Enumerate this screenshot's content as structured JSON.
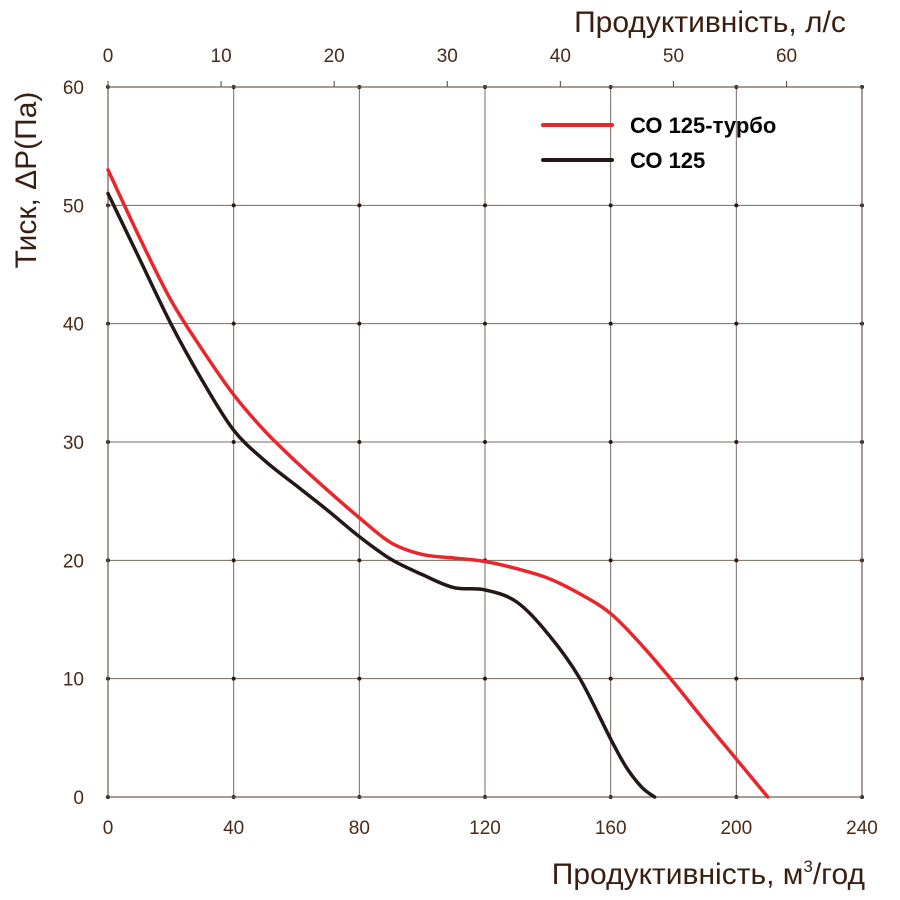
{
  "chart_data": {
    "type": "line",
    "title": "",
    "xlabel": "Продуктивність, м³/год",
    "xlabel_main": "Продуктивність, м",
    "xlabel_sup": "3",
    "xlabel_tail": "/год",
    "x2label": "Продуктивність, л/с",
    "ylabel": "Тиск, ΔP(Па)",
    "xlim": [
      0,
      240
    ],
    "x2lim": [
      0,
      66.67
    ],
    "ylim": [
      0,
      60
    ],
    "x_ticks": [
      "0",
      "40",
      "80",
      "120",
      "160",
      "200",
      "240"
    ],
    "x_tick_values": [
      0,
      40,
      80,
      120,
      160,
      200,
      240
    ],
    "x2_ticks": [
      "0",
      "10",
      "20",
      "30",
      "40",
      "50",
      "60"
    ],
    "x2_tick_values": [
      0,
      10,
      20,
      30,
      40,
      50,
      60
    ],
    "y_ticks": [
      "0",
      "10",
      "20",
      "30",
      "40",
      "50",
      "60"
    ],
    "y_tick_values": [
      0,
      10,
      20,
      30,
      40,
      50,
      60
    ],
    "grid": true,
    "legend_position": "top-right",
    "series": [
      {
        "name": "СО 125-турбо",
        "color": "#e8262b",
        "x": [
          0,
          10,
          20,
          30,
          40,
          50,
          60,
          70,
          80,
          90,
          100,
          110,
          120,
          130,
          140,
          150,
          160,
          170,
          180,
          190,
          200,
          210
        ],
        "y": [
          53,
          47.3,
          42,
          37.8,
          34,
          30.9,
          28.3,
          25.9,
          23.6,
          21.5,
          20.5,
          20.2,
          19.9,
          19.3,
          18.5,
          17.2,
          15.5,
          12.8,
          9.7,
          6.4,
          3.2,
          0
        ]
      },
      {
        "name": "СО 125",
        "color": "#231815",
        "x": [
          0,
          10,
          20,
          30,
          40,
          50,
          60,
          70,
          80,
          90,
          100,
          110,
          120,
          130,
          140,
          150,
          160,
          165,
          170,
          174
        ],
        "y": [
          51,
          45.5,
          40,
          35.2,
          31,
          28.4,
          26.3,
          24.2,
          22,
          20.1,
          18.8,
          17.7,
          17.5,
          16.5,
          13.8,
          10.1,
          4.9,
          2.5,
          0.8,
          0
        ]
      }
    ]
  }
}
